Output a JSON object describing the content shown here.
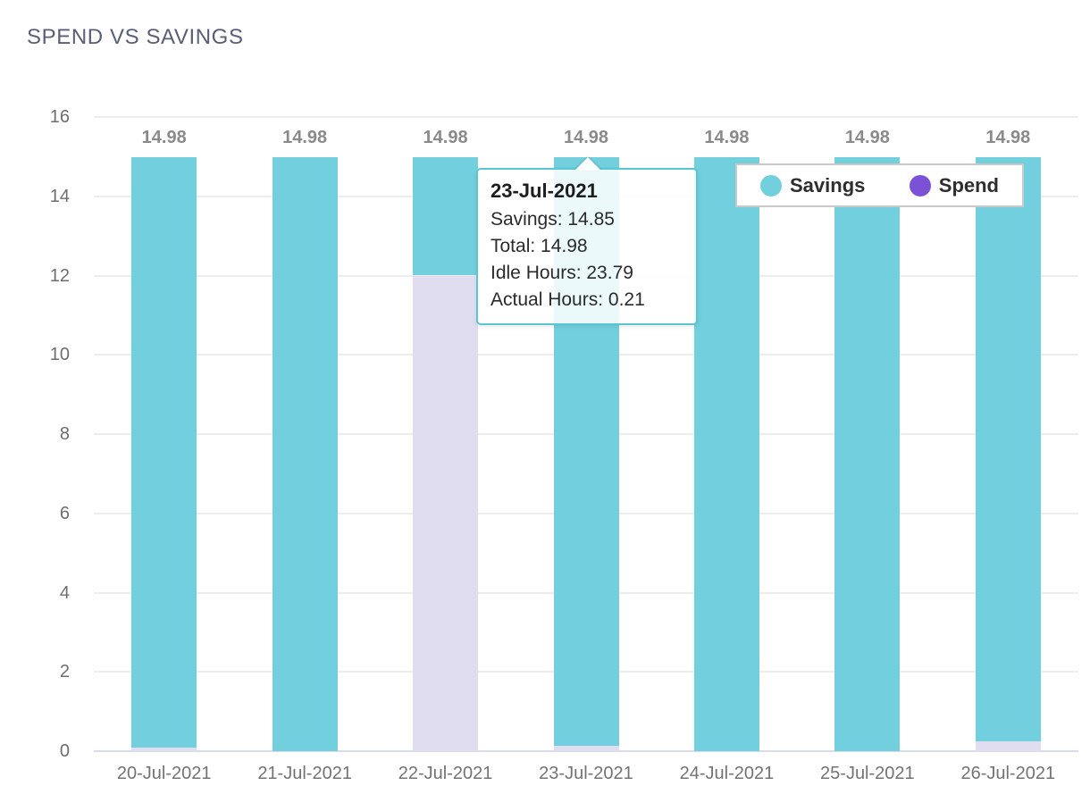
{
  "title": "SPEND VS SAVINGS",
  "colors": {
    "savings_bar": "#72D0DE",
    "spend_bar": "#E0DDF1",
    "spend_legend": "#7B52D6",
    "gridline": "#EDEDED",
    "x_axis_line": "#D8DCEB",
    "tooltip_border": "#5CC5D2",
    "title_text": "#5A5E77",
    "bar_label_text": "#8A8A8A"
  },
  "chart_data": {
    "type": "bar",
    "stacked": true,
    "title": "SPEND VS SAVINGS",
    "categories": [
      "20-Jul-2021",
      "21-Jul-2021",
      "22-Jul-2021",
      "23-Jul-2021",
      "24-Jul-2021",
      "25-Jul-2021",
      "26-Jul-2021"
    ],
    "series": [
      {
        "name": "Spend",
        "color": "#E0DDF1",
        "legend_color": "#7B52D6",
        "values": [
          0.1,
          0.0,
          12.0,
          0.13,
          0.0,
          0.0,
          0.25
        ]
      },
      {
        "name": "Savings",
        "color": "#72D0DE",
        "legend_color": "#72D0DE",
        "values": [
          14.88,
          14.98,
          2.98,
          14.85,
          14.98,
          14.98,
          14.73
        ]
      }
    ],
    "totals": [
      14.98,
      14.98,
      14.98,
      14.98,
      14.98,
      14.98,
      14.98
    ],
    "bar_labels": [
      "14.98",
      "14.98",
      "14.98",
      "14.98",
      "14.98",
      "14.98",
      "14.98"
    ],
    "xlabel": "",
    "ylabel": "",
    "ylim": [
      0,
      16
    ],
    "y_ticks": [
      0,
      2,
      4,
      6,
      8,
      10,
      12,
      14,
      16
    ],
    "grid": true,
    "legend_position": "top-right"
  },
  "legend": {
    "items": [
      {
        "label": "Savings",
        "color": "#72D0DE"
      },
      {
        "label": "Spend",
        "color": "#7B52D6"
      }
    ]
  },
  "tooltip": {
    "title": "23-Jul-2021",
    "lines": [
      "Savings: 14.85",
      "Total: 14.98",
      "Idle Hours: 23.79",
      "Actual Hours: 0.21"
    ]
  }
}
